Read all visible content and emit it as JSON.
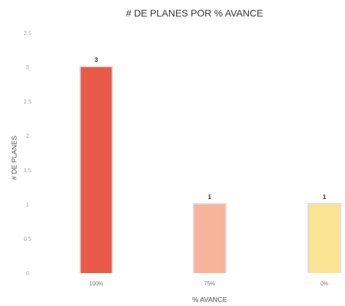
{
  "chart_data": {
    "type": "bar",
    "title": "# DE PLANES POR % AVANCE",
    "xlabel": "% AVANCE",
    "ylabel": "# DE PLANES",
    "categories": [
      "100%",
      "75%",
      "0%"
    ],
    "values": [
      3,
      1,
      1
    ],
    "data_labels": [
      "3",
      "1",
      "1"
    ],
    "ylim": [
      0,
      3.5
    ],
    "yticks": [
      "0",
      "0.5",
      "1",
      "1.5",
      "2",
      "2.5",
      "3",
      "3.5"
    ],
    "colors": [
      "#e85a47",
      "#f7b49a",
      "#fbe394"
    ],
    "grid": false,
    "legend": "none"
  }
}
